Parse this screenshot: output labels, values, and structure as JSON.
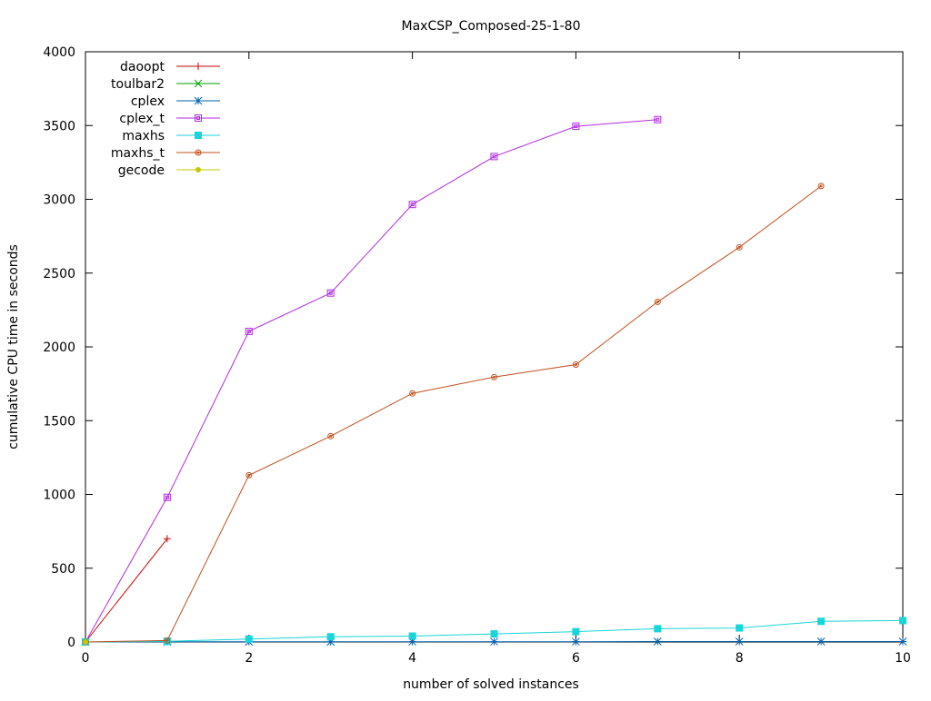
{
  "chart_data": {
    "type": "line",
    "title": "MaxCSP_Composed-25-1-80",
    "xlabel": "number of solved instances",
    "ylabel": "cumulative CPU time in seconds",
    "xlim": [
      0,
      10
    ],
    "ylim": [
      0,
      4000
    ],
    "xticks": [
      0,
      2,
      4,
      6,
      8,
      10
    ],
    "yticks": [
      0,
      500,
      1000,
      1500,
      2000,
      2500,
      3000,
      3500,
      4000
    ],
    "grid": false,
    "legend_position": "top-left",
    "series": [
      {
        "name": "daoopt",
        "color": "#cc0000",
        "marker": "plus",
        "x": [
          0,
          1
        ],
        "y": [
          0,
          700
        ]
      },
      {
        "name": "toulbar2",
        "color": "#00a000",
        "marker": "cross",
        "x": [
          0
        ],
        "y": [
          0
        ]
      },
      {
        "name": "cplex",
        "color": "#0060ad",
        "marker": "star",
        "x": [
          0,
          1,
          2,
          3,
          4,
          5,
          6,
          7,
          8,
          9,
          10
        ],
        "y": [
          0,
          1,
          1,
          1,
          2,
          2,
          2,
          3,
          3,
          3,
          3
        ]
      },
      {
        "name": "cplex_t",
        "color": "#b02be0",
        "marker": "open-square",
        "x": [
          0,
          1,
          2,
          3,
          4,
          5,
          6,
          7
        ],
        "y": [
          0,
          980,
          2105,
          2365,
          2965,
          3290,
          3495,
          3540
        ]
      },
      {
        "name": "maxhs",
        "color": "#17d5d8",
        "marker": "filled-square",
        "x": [
          0,
          1,
          2,
          3,
          4,
          5,
          6,
          7,
          8,
          9,
          10
        ],
        "y": [
          0,
          5,
          20,
          35,
          40,
          55,
          70,
          90,
          95,
          140,
          145
        ]
      },
      {
        "name": "maxhs_t",
        "color": "#c0501c",
        "marker": "open-circle",
        "x": [
          0,
          1,
          2,
          3,
          4,
          5,
          6,
          7,
          8,
          9
        ],
        "y": [
          0,
          10,
          1130,
          1395,
          1685,
          1795,
          1880,
          2305,
          2675,
          3090
        ]
      },
      {
        "name": "gecode",
        "color": "#c8c800",
        "marker": "filled-circle",
        "x": [
          0
        ],
        "y": [
          0
        ]
      }
    ]
  }
}
